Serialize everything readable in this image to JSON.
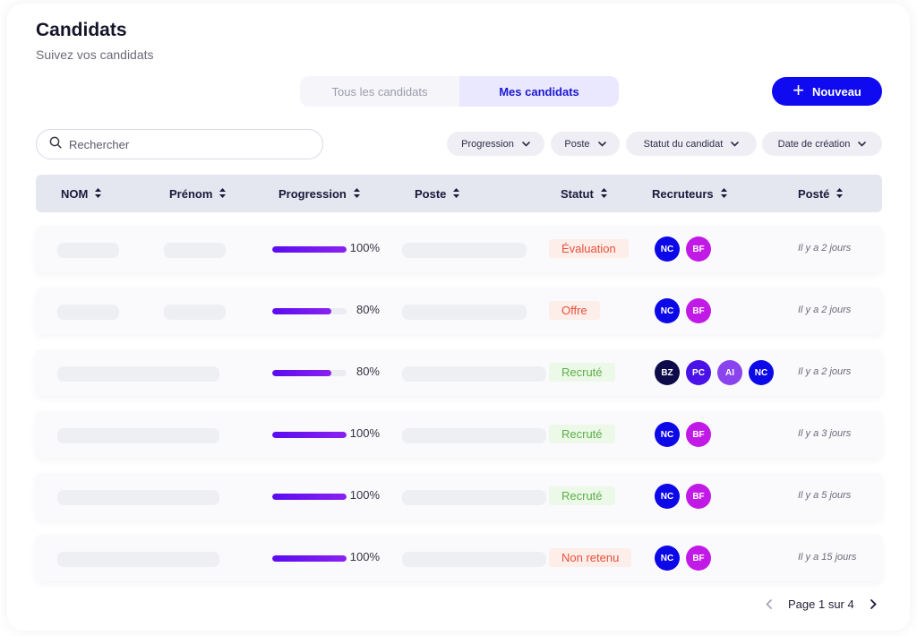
{
  "header": {
    "title": "Candidats",
    "subtitle": "Suivez vos candidats"
  },
  "tabs": [
    {
      "label": "Tous les candidats",
      "active": false
    },
    {
      "label": "Mes candidats",
      "active": true
    }
  ],
  "new_button": {
    "label": "Nouveau",
    "icon": "plus-icon"
  },
  "search": {
    "placeholder": "Rechercher",
    "value": "",
    "icon": "search-icon"
  },
  "filters": [
    {
      "label": "Progression"
    },
    {
      "label": "Poste"
    },
    {
      "label": "Statut du candidat"
    },
    {
      "label": "Date de création"
    }
  ],
  "table": {
    "columns": [
      "NOM",
      "Prénom",
      "Progression",
      "Poste",
      "Statut",
      "Recruteurs",
      "Posté"
    ],
    "rows": [
      {
        "progress": 100,
        "progress_label": "100%",
        "status": "Évaluation",
        "status_type": "danger",
        "recruiters": [
          "NC",
          "BF"
        ],
        "posted": "Il y a 2 jours",
        "split_name": true
      },
      {
        "progress": 80,
        "progress_label": "80%",
        "status": "Offre",
        "status_type": "danger",
        "recruiters": [
          "NC",
          "BF"
        ],
        "posted": "Il y a 2 jours",
        "split_name": true
      },
      {
        "progress": 80,
        "progress_label": "80%",
        "status": "Recruté",
        "status_type": "success",
        "recruiters": [
          "BZ",
          "PC",
          "AI",
          "NC"
        ],
        "posted": "Il y a 2 jours",
        "split_name": false
      },
      {
        "progress": 100,
        "progress_label": "100%",
        "status": "Recruté",
        "status_type": "success",
        "recruiters": [
          "NC",
          "BF"
        ],
        "posted": "Il y a 3 jours",
        "split_name": false
      },
      {
        "progress": 100,
        "progress_label": "100%",
        "status": "Recruté",
        "status_type": "success",
        "recruiters": [
          "NC",
          "BF"
        ],
        "posted": "Il y a 5 jours",
        "split_name": false
      },
      {
        "progress": 100,
        "progress_label": "100%",
        "status": "Non retenu",
        "status_type": "danger",
        "recruiters": [
          "NC",
          "BF"
        ],
        "posted": "Il y a 15 jours",
        "split_name": false
      }
    ]
  },
  "recruiter_colors": {
    "NC": "#0c08e8",
    "BF": "#c21ae6",
    "BZ": "#0d0b4a",
    "PC": "#4a12e6",
    "AI": "#8a44ee"
  },
  "status_colors": {
    "danger": {
      "bg": "#fdeeea",
      "fg": "#e8503a"
    },
    "success": {
      "bg": "#ecf8e8",
      "fg": "#5bb046"
    }
  },
  "colors": {
    "accent": "#0f0af0",
    "progress_gradient_start": "#5a0cf0",
    "progress_gradient_end": "#8a22f0"
  },
  "pagination": {
    "label": "Page 1 sur 4",
    "prev_icon": "chevron-left-icon",
    "next_icon": "chevron-right-icon"
  }
}
